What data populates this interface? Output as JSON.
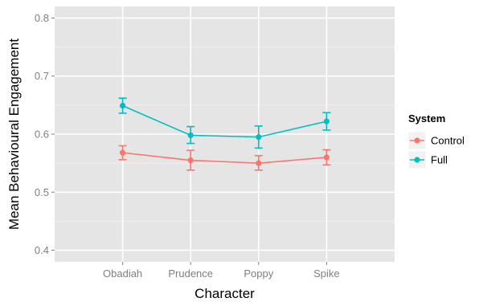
{
  "chart_data": {
    "type": "line",
    "title": "",
    "xlabel": "Character",
    "ylabel": "Mean Behavioural Engagement",
    "categories": [
      "Obadiah",
      "Prudence",
      "Poppy",
      "Spike"
    ],
    "ylim": [
      0.38,
      0.82
    ],
    "yticks": [
      0.4,
      0.5,
      0.6,
      0.7,
      0.8
    ],
    "ytick_labels": [
      "0.4",
      "0.5",
      "0.6",
      "0.7",
      "0.8"
    ],
    "grid": true,
    "legend": {
      "title": "System",
      "position": "right"
    },
    "series": [
      {
        "name": "Control",
        "color": "#F8766D",
        "values": [
          0.568,
          0.555,
          0.55,
          0.56
        ],
        "error_low": [
          0.556,
          0.538,
          0.538,
          0.547
        ],
        "error_high": [
          0.58,
          0.572,
          0.563,
          0.573
        ]
      },
      {
        "name": "Full",
        "color": "#00BFC4",
        "values": [
          0.649,
          0.598,
          0.595,
          0.622
        ],
        "error_low": [
          0.636,
          0.584,
          0.576,
          0.607
        ],
        "error_high": [
          0.662,
          0.613,
          0.614,
          0.637
        ]
      }
    ]
  }
}
